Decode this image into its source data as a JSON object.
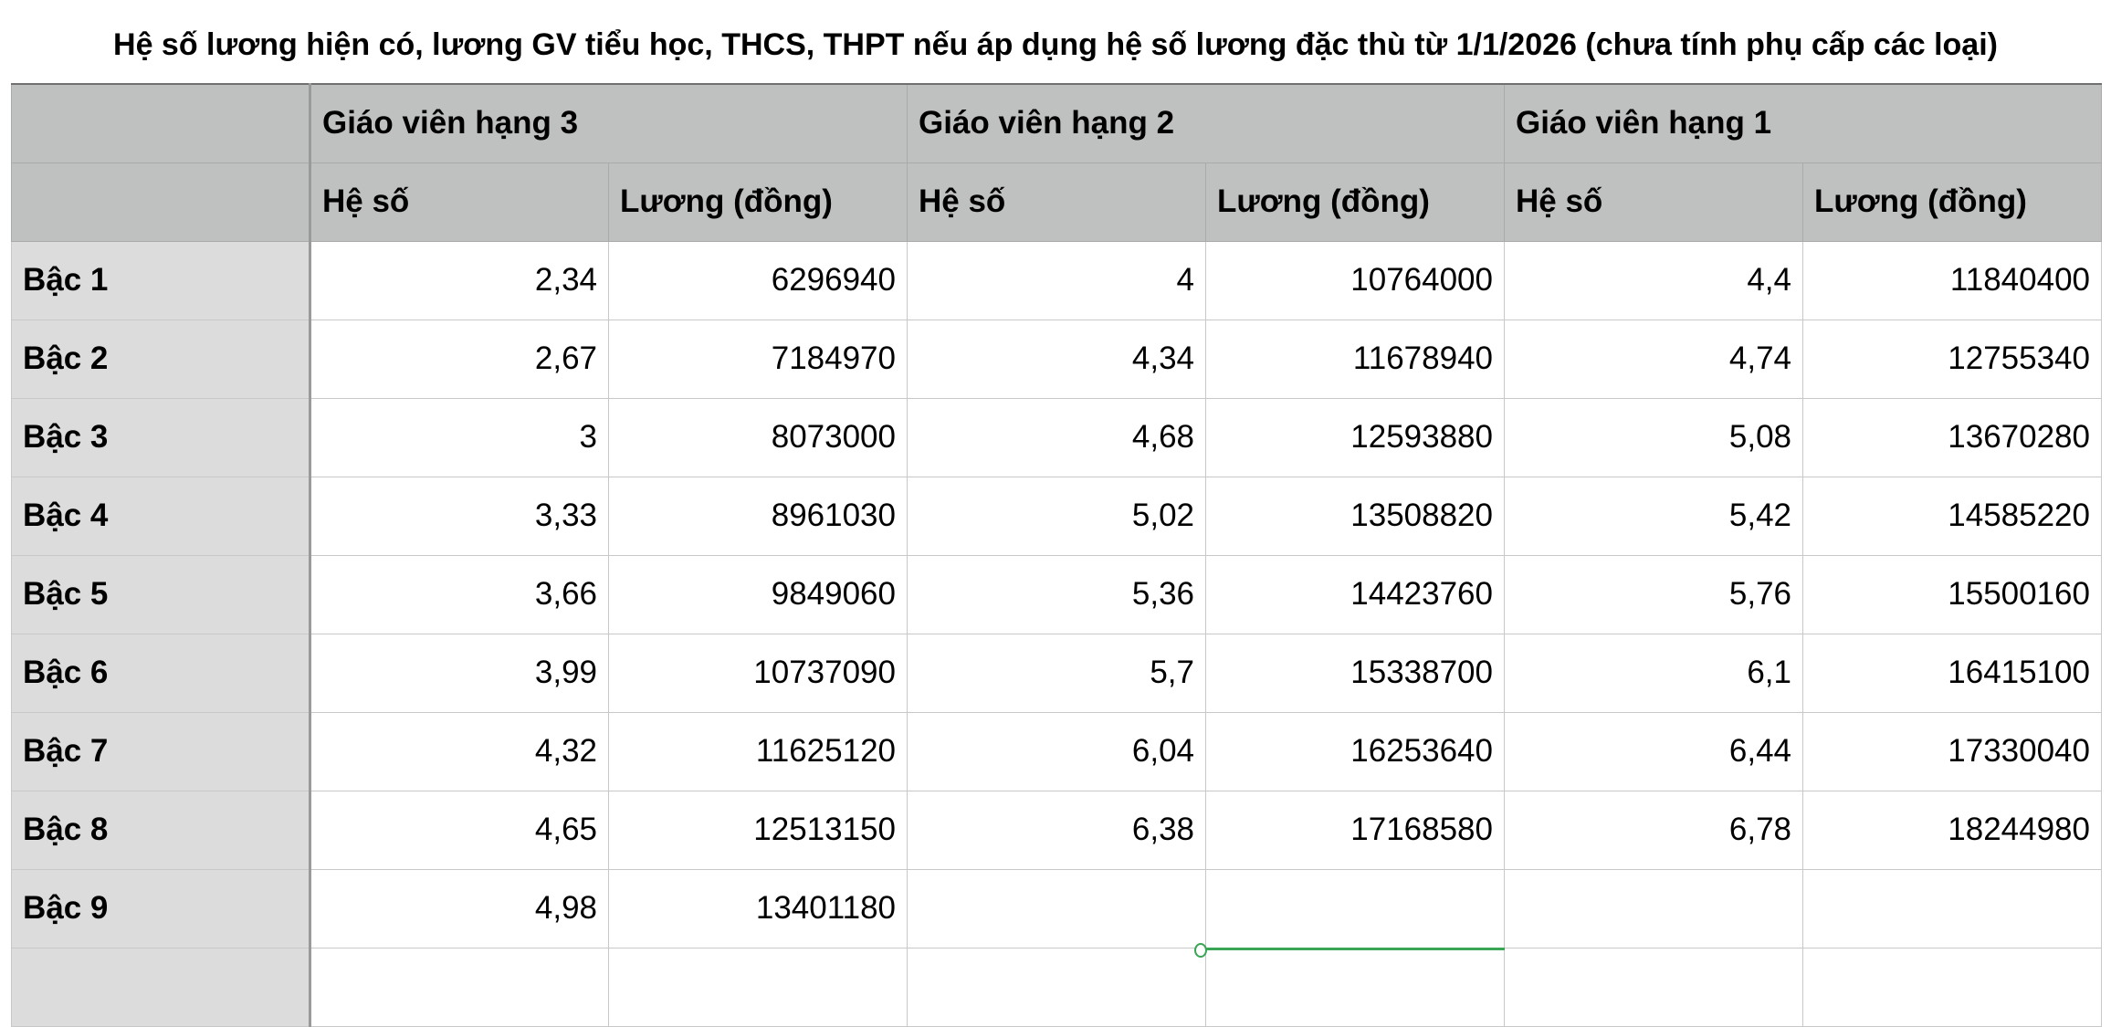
{
  "title": "Hệ số lương hiện có, lương GV tiểu học, THCS, THPT nếu áp dụng hệ số lương đặc thù từ 1/1/2026 (chưa tính phụ cấp các loại)",
  "groups": [
    "Giáo viên hạng 3",
    "Giáo viên hạng 2",
    "Giáo viên hạng 1"
  ],
  "subheaders": [
    "Hệ số",
    "Lương (đồng)",
    "Hệ số",
    "Lương (đồng)",
    "Hệ số",
    "Lương (đồng)"
  ],
  "rows": [
    {
      "label": "Bậc 1",
      "cells": [
        "2,34",
        "6296940",
        "4",
        "10764000",
        "4,4",
        "11840400"
      ]
    },
    {
      "label": "Bậc 2",
      "cells": [
        "2,67",
        "7184970",
        "4,34",
        "11678940",
        "4,74",
        "12755340"
      ]
    },
    {
      "label": "Bậc 3",
      "cells": [
        "3",
        "8073000",
        "4,68",
        "12593880",
        "5,08",
        "13670280"
      ]
    },
    {
      "label": "Bậc 4",
      "cells": [
        "3,33",
        "8961030",
        "5,02",
        "13508820",
        "5,42",
        "14585220"
      ]
    },
    {
      "label": "Bậc 5",
      "cells": [
        "3,66",
        "9849060",
        "5,36",
        "14423760",
        "5,76",
        "15500160"
      ]
    },
    {
      "label": "Bậc 6",
      "cells": [
        "3,99",
        "10737090",
        "5,7",
        "15338700",
        "6,1",
        "16415100"
      ]
    },
    {
      "label": "Bậc 7",
      "cells": [
        "4,32",
        "11625120",
        "6,04",
        "16253640",
        "6,44",
        "17330040"
      ]
    },
    {
      "label": "Bậc 8",
      "cells": [
        "4,65",
        "12513150",
        "6,38",
        "17168580",
        "6,78",
        "18244980"
      ]
    },
    {
      "label": "Bậc 9",
      "cells": [
        "4,98",
        "13401180",
        "",
        "",
        "",
        ""
      ]
    },
    {
      "label": "",
      "cells": [
        "",
        "",
        "",
        "",
        "",
        ""
      ]
    }
  ],
  "colors": {
    "header_bg": "#bfc1c0",
    "row_header_bg": "#dcdcdc",
    "selection": "#3aa655"
  }
}
